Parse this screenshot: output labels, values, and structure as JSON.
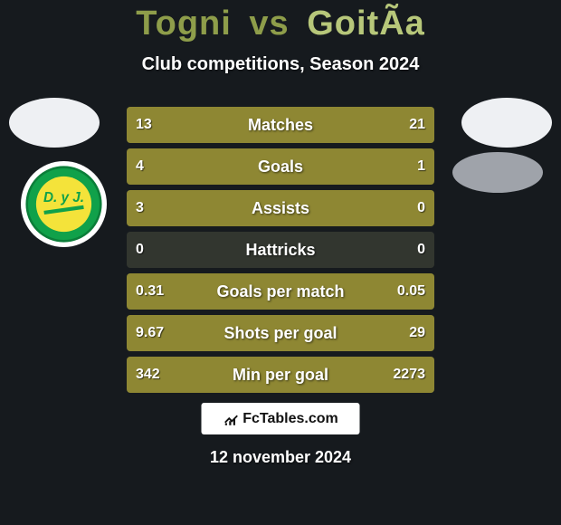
{
  "background_color": "#161a1e",
  "accent_color": "#8e8733",
  "track_color": "#32362f",
  "title_color_a": "#8e9d4a",
  "title_color_b": "#b7c77a",
  "avatar_bg": "#eef0f3",
  "club_right_bg": "#9fa3aa",
  "header": {
    "player_a": "Togni",
    "vs": "vs",
    "player_b": "GoitÃa",
    "subtitle": "Club competitions, Season 2024"
  },
  "rows": [
    {
      "label": "Matches",
      "left": "13",
      "right": "21",
      "left_pct": 38,
      "right_pct": 62
    },
    {
      "label": "Goals",
      "left": "4",
      "right": "1",
      "left_pct": 80,
      "right_pct": 20
    },
    {
      "label": "Assists",
      "left": "3",
      "right": "0",
      "left_pct": 100,
      "right_pct": 0
    },
    {
      "label": "Hattricks",
      "left": "0",
      "right": "0",
      "left_pct": 0,
      "right_pct": 0
    },
    {
      "label": "Goals per match",
      "left": "0.31",
      "right": "0.05",
      "left_pct": 86,
      "right_pct": 14
    },
    {
      "label": "Shots per goal",
      "left": "9.67",
      "right": "29",
      "left_pct": 25,
      "right_pct": 75
    },
    {
      "label": "Min per goal",
      "left": "342",
      "right": "2273",
      "left_pct": 13,
      "right_pct": 87
    }
  ],
  "brand": "FcTables.com",
  "date": "12 november 2024"
}
